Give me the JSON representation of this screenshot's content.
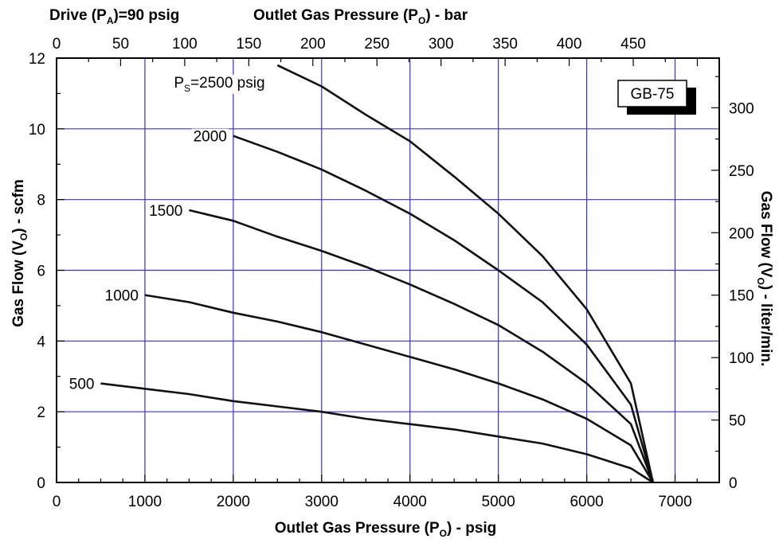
{
  "chart_data": {
    "type": "line",
    "top_left_label": {
      "main": "Drive (P",
      "sub": "A",
      "tail": ")=90 psig"
    },
    "model_badge": "GB-75",
    "x_axis": {
      "title": {
        "main": "Outlet Gas Pressure (P",
        "sub": "O",
        "tail": ") - psig"
      },
      "range": [
        0,
        7500
      ],
      "ticks": [
        0,
        1000,
        2000,
        3000,
        4000,
        5000,
        6000,
        7000
      ],
      "tick_labels": [
        "0",
        "1000",
        "2000",
        "3000",
        "4000",
        "5000",
        "6000",
        "7000"
      ]
    },
    "x2_axis": {
      "title": {
        "main": "Outlet Gas Pressure (P",
        "sub": "O",
        "tail": ") - bar"
      },
      "range_bar": [
        0,
        517.1
      ],
      "ticks": [
        0,
        50,
        100,
        150,
        200,
        250,
        300,
        350,
        400,
        450
      ],
      "tick_labels": [
        "0",
        "50",
        "100",
        "150",
        "200",
        "250",
        "300",
        "350",
        "400",
        "450"
      ]
    },
    "y_axis": {
      "title": {
        "main": "Gas Flow (V",
        "sub": "O",
        "tail": ") - scfm"
      },
      "range": [
        0,
        12
      ],
      "ticks": [
        0,
        2,
        4,
        6,
        8,
        10,
        12
      ],
      "tick_labels": [
        "0",
        "2",
        "4",
        "6",
        "8",
        "10",
        "12"
      ]
    },
    "y2_axis": {
      "title": {
        "main": "Gas Flow (V",
        "sub": "O",
        "tail": ") - liter/min."
      },
      "range_lpm": [
        0,
        339.8
      ],
      "ticks": [
        0,
        50,
        100,
        150,
        200,
        250,
        300
      ],
      "tick_labels": [
        "0",
        "50",
        "100",
        "150",
        "200",
        "250",
        "300"
      ]
    },
    "grid": true,
    "series": [
      {
        "name": "500",
        "label_parts": {
          "main": "500"
        },
        "x": [
          500,
          1000,
          1500,
          2000,
          2500,
          3000,
          3500,
          4000,
          4500,
          5000,
          5500,
          6000,
          6500,
          6750
        ],
        "y": [
          2.8,
          2.65,
          2.5,
          2.3,
          2.15,
          2.0,
          1.8,
          1.65,
          1.5,
          1.3,
          1.1,
          0.8,
          0.4,
          0.0
        ]
      },
      {
        "name": "1000",
        "label_parts": {
          "main": "1000"
        },
        "x": [
          1000,
          1500,
          2000,
          2500,
          3000,
          3500,
          4000,
          4500,
          5000,
          5500,
          6000,
          6500,
          6750
        ],
        "y": [
          5.3,
          5.1,
          4.8,
          4.55,
          4.25,
          3.9,
          3.55,
          3.2,
          2.8,
          2.35,
          1.8,
          1.05,
          0.0
        ]
      },
      {
        "name": "1500",
        "label_parts": {
          "main": "1500"
        },
        "x": [
          1500,
          2000,
          2500,
          3000,
          3500,
          4000,
          4500,
          5000,
          5500,
          6000,
          6500,
          6750
        ],
        "y": [
          7.7,
          7.4,
          6.95,
          6.55,
          6.1,
          5.6,
          5.05,
          4.45,
          3.7,
          2.8,
          1.65,
          0.0
        ]
      },
      {
        "name": "2000",
        "label_parts": {
          "main": "2000"
        },
        "x": [
          2000,
          2500,
          3000,
          3500,
          4000,
          4500,
          5000,
          5500,
          6000,
          6500,
          6750
        ],
        "y": [
          9.8,
          9.35,
          8.85,
          8.25,
          7.6,
          6.85,
          6.0,
          5.1,
          3.9,
          2.2,
          0.0
        ]
      },
      {
        "name": "Ps=2500 psig",
        "label_parts": {
          "main": "P",
          "sub": "S",
          "tail": "=2500 psig"
        },
        "x": [
          2500,
          3000,
          3500,
          4000,
          4500,
          5000,
          5500,
          6000,
          6500,
          6750
        ],
        "y": [
          11.8,
          11.2,
          10.4,
          9.65,
          8.65,
          7.6,
          6.4,
          4.9,
          2.8,
          0.0
        ]
      }
    ]
  }
}
